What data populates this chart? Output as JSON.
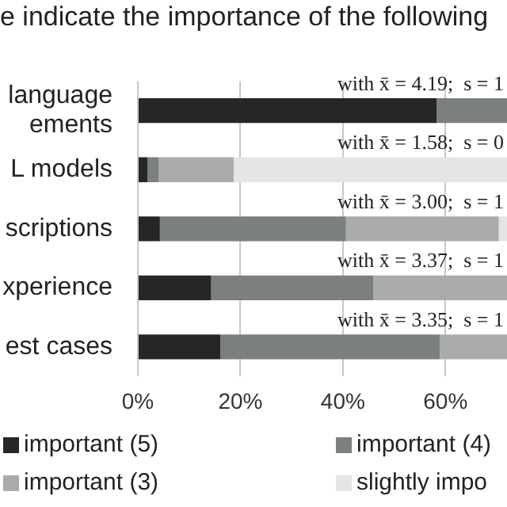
{
  "chart_data": {
    "type": "bar",
    "orientation": "horizontal",
    "stacked": true,
    "title": "e indicate the importance of the following",
    "categories": [
      "language\nements",
      "L models",
      "scriptions",
      "xperience",
      "est cases"
    ],
    "series": [
      {
        "name": "important (5)",
        "color": "#262626",
        "values": [
          58.3,
          1.9,
          4.3,
          14.3,
          16.1
        ]
      },
      {
        "name": "important (4)",
        "color": "#7b7f7d",
        "values": [
          13.7,
          2.2,
          36.3,
          31.6,
          42.8
        ]
      },
      {
        "name": "important (3)",
        "color": "#a9acab",
        "values": [
          null,
          14.6,
          29.8,
          26.1,
          13.1
        ]
      },
      {
        "name": "slightly impo",
        "color": "#e4e6e5",
        "values": [
          null,
          53.3,
          1.6,
          null,
          null
        ]
      }
    ],
    "xlim": [
      0,
      72
    ],
    "xticks": [
      {
        "value": 0,
        "label": "0%"
      },
      {
        "value": 20,
        "label": "20%"
      },
      {
        "value": 40,
        "label": "40%"
      },
      {
        "value": 60,
        "label": "60%"
      }
    ],
    "grid": "x",
    "legend": "bottom",
    "annotations": [
      "with x̄ = 4.19;  s = 1",
      "with x̄ = 1.58;  s = 0",
      "with x̄ = 3.00;  s = 1",
      "with x̄ = 3.37;  s = 1",
      "with x̄ = 3.35;  s = 1"
    ]
  }
}
